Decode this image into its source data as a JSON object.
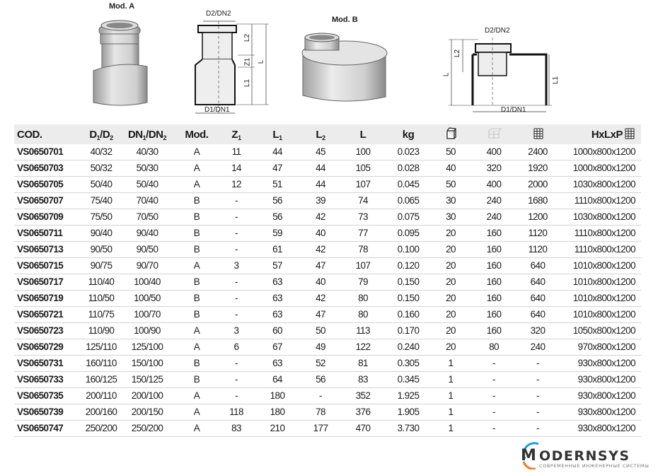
{
  "diagrams": {
    "mod_a_label": "Mod. A",
    "mod_b_label": "Mod. B",
    "dims": {
      "d2dn2": "D2/DN2",
      "d1dn1": "D1/DN1",
      "l": "L",
      "l1": "L1",
      "l2": "L2",
      "z1": "Z1"
    }
  },
  "table": {
    "headers": [
      {
        "main": "COD.",
        "sub": ""
      },
      {
        "main": "D",
        "sub": "1",
        "main2": "/D",
        "sub2": "2"
      },
      {
        "main": "DN",
        "sub": "1",
        "main2": "/DN",
        "sub2": "2"
      },
      {
        "main": "Mod.",
        "sub": ""
      },
      {
        "main": "Z",
        "sub": "1"
      },
      {
        "main": "L",
        "sub": "1"
      },
      {
        "main": "L",
        "sub": "2"
      },
      {
        "main": "L",
        "sub": ""
      },
      {
        "main": "kg",
        "sub": ""
      },
      {
        "icon": "box-icon"
      },
      {
        "icon": "pallet-layer-icon"
      },
      {
        "icon": "pallet-icon"
      },
      {
        "main": "HxLxP",
        "icon": "pallet-icon"
      }
    ],
    "rows": [
      [
        "VS0650701",
        "40/32",
        "40/30",
        "A",
        "11",
        "44",
        "45",
        "100",
        "0.023",
        "50",
        "400",
        "2400",
        "1000x800x1200"
      ],
      [
        "VS0650703",
        "50/32",
        "50/30",
        "A",
        "14",
        "47",
        "44",
        "105",
        "0.028",
        "40",
        "320",
        "1920",
        "1000x800x1200"
      ],
      [
        "VS0650705",
        "50/40",
        "50/40",
        "A",
        "12",
        "51",
        "44",
        "107",
        "0.045",
        "50",
        "400",
        "2000",
        "1030x800x1200"
      ],
      [
        "VS0650707",
        "75/40",
        "70/40",
        "B",
        "-",
        "56",
        "39",
        "74",
        "0.065",
        "30",
        "240",
        "1680",
        "1110x800x1200"
      ],
      [
        "VS0650709",
        "75/50",
        "70/50",
        "B",
        "-",
        "56",
        "42",
        "73",
        "0.075",
        "30",
        "240",
        "1200",
        "1030x800x1200"
      ],
      [
        "VS0650711",
        "90/40",
        "90/40",
        "B",
        "-",
        "59",
        "40",
        "77",
        "0.095",
        "20",
        "160",
        "1120",
        "1110x800x1200"
      ],
      [
        "VS0650713",
        "90/50",
        "90/50",
        "B",
        "-",
        "61",
        "42",
        "78",
        "0.100",
        "20",
        "160",
        "1120",
        "1110x800x1200"
      ],
      [
        "VS0650715",
        "90/75",
        "90/70",
        "A",
        "3",
        "57",
        "47",
        "107",
        "0.120",
        "20",
        "160",
        "640",
        "1010x800x1200"
      ],
      [
        "VS0650717",
        "110/40",
        "100/40",
        "B",
        "-",
        "63",
        "40",
        "79",
        "0.150",
        "20",
        "160",
        "640",
        "1010x800x1200"
      ],
      [
        "VS0650719",
        "110/50",
        "100/50",
        "B",
        "-",
        "63",
        "42",
        "80",
        "0.150",
        "20",
        "160",
        "640",
        "1010x800x1200"
      ],
      [
        "VS0650721",
        "110/75",
        "100/70",
        "B",
        "-",
        "63",
        "47",
        "80",
        "0.160",
        "20",
        "160",
        "640",
        "1010x800x1200"
      ],
      [
        "VS0650723",
        "110/90",
        "100/90",
        "A",
        "3",
        "60",
        "50",
        "113",
        "0.170",
        "20",
        "160",
        "320",
        "1050x800x1200"
      ],
      [
        "VS0650729",
        "125/110",
        "125/100",
        "A",
        "6",
        "67",
        "49",
        "122",
        "0.240",
        "20",
        "80",
        "240",
        "970x800x1200"
      ],
      [
        "VS0650731",
        "160/110",
        "150/100",
        "B",
        "-",
        "63",
        "52",
        "81",
        "0.305",
        "1",
        "-",
        "-",
        "930x800x1200"
      ],
      [
        "VS0650733",
        "160/125",
        "150/125",
        "B",
        "-",
        "64",
        "56",
        "83",
        "0.345",
        "1",
        "-",
        "-",
        "930x800x1200"
      ],
      [
        "VS0650735",
        "200/110",
        "200/100",
        "A",
        "-",
        "180",
        "-",
        "352",
        "1.925",
        "1",
        "-",
        "-",
        "930x800x1200"
      ],
      [
        "VS0650739",
        "200/160",
        "200/150",
        "A",
        "118",
        "180",
        "78",
        "376",
        "1.905",
        "1",
        "-",
        "-",
        "930x800x1200"
      ],
      [
        "VS0650747",
        "250/200",
        "250/200",
        "A",
        "83",
        "210",
        "177",
        "470",
        "3.730",
        "1",
        "-",
        "-",
        "930x800x1200"
      ]
    ]
  },
  "logo": {
    "name": "MODERNSYS",
    "tagline": "СОВРЕМЕННЫЕ ИНЖЕНЕРНЫЕ СИСТЕМЫ",
    "colors": {
      "ring_blue": "#1e9be0",
      "ring_orange": "#f07b2a",
      "text": "#333333"
    }
  },
  "colors": {
    "header_bg": "#ececec",
    "row_divider": "#d4d4d4"
  }
}
